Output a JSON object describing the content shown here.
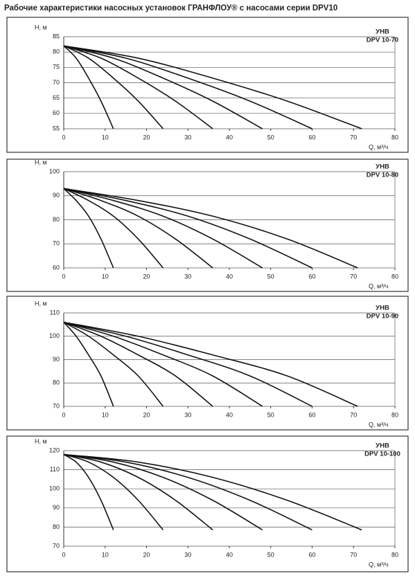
{
  "title": "Рабочие характеристики насосных установок  ГРАНФЛОУ® с насосами серии DPV10",
  "chart_data": [
    {
      "type": "line",
      "y_label": "H, м",
      "x_label": "Q, м³/ч",
      "label": "УНВ",
      "model": "DPV 10-70",
      "xlim": [
        0,
        80
      ],
      "xticks": [
        0,
        10,
        20,
        30,
        40,
        50,
        60,
        70,
        80
      ],
      "ylim": [
        55,
        85
      ],
      "yticks": [
        55,
        60,
        65,
        70,
        75,
        80,
        85
      ],
      "grid": true,
      "series": [
        {
          "color": "#111",
          "x": [
            0,
            3,
            6,
            9,
            12
          ],
          "values": [
            82,
            78,
            71.5,
            64,
            55
          ]
        },
        {
          "color": "#111",
          "x": [
            0,
            6,
            12,
            18,
            24
          ],
          "values": [
            82,
            78,
            71.5,
            64,
            55
          ]
        },
        {
          "color": "#111",
          "x": [
            0,
            9,
            18,
            27,
            36
          ],
          "values": [
            82,
            78,
            71.5,
            64,
            55
          ]
        },
        {
          "color": "#111",
          "x": [
            0,
            12,
            24,
            36,
            48
          ],
          "values": [
            82,
            78,
            71.5,
            64,
            55
          ]
        },
        {
          "color": "#111",
          "x": [
            0,
            15,
            30,
            45,
            60
          ],
          "values": [
            82,
            78,
            71.5,
            64,
            55
          ]
        },
        {
          "color": "#111",
          "x": [
            0,
            18,
            36,
            54,
            72
          ],
          "values": [
            82,
            78,
            71.5,
            64,
            55
          ]
        }
      ]
    },
    {
      "type": "line",
      "y_label": "H, м",
      "x_label": "Q, м³/ч",
      "label": "УНВ",
      "model": "DPV 10-80",
      "xlim": [
        0,
        80
      ],
      "xticks": [
        0,
        10,
        20,
        30,
        40,
        50,
        60,
        70,
        80
      ],
      "ylim": [
        60,
        100
      ],
      "yticks": [
        60,
        70,
        80,
        90,
        100
      ],
      "grid": true,
      "series": [
        {
          "color": "#111",
          "x": [
            0,
            3,
            6,
            9,
            12
          ],
          "values": [
            93,
            88,
            81.5,
            72,
            60
          ]
        },
        {
          "color": "#111",
          "x": [
            0,
            6,
            12,
            18,
            24
          ],
          "values": [
            93,
            88,
            81.5,
            72,
            60
          ]
        },
        {
          "color": "#111",
          "x": [
            0,
            9,
            18,
            27,
            36
          ],
          "values": [
            93,
            88,
            81.5,
            72,
            60
          ]
        },
        {
          "color": "#111",
          "x": [
            0,
            12,
            24,
            36,
            48
          ],
          "values": [
            93,
            88,
            81.5,
            72,
            60
          ]
        },
        {
          "color": "#111",
          "x": [
            0,
            15,
            30,
            45,
            60
          ],
          "values": [
            93,
            88,
            81.5,
            72,
            60
          ]
        },
        {
          "color": "#111",
          "x": [
            0,
            18,
            36,
            54,
            71
          ],
          "values": [
            93,
            88,
            81.5,
            72,
            60
          ]
        }
      ]
    },
    {
      "type": "line",
      "y_label": "H, м",
      "x_label": "Q, м³/ч",
      "label": "УНВ",
      "model": "DPV 10-90",
      "xlim": [
        0,
        80
      ],
      "xticks": [
        0,
        10,
        20,
        30,
        40,
        50,
        60,
        70,
        80
      ],
      "ylim": [
        70,
        110
      ],
      "yticks": [
        70,
        80,
        90,
        100,
        110
      ],
      "grid": true,
      "series": [
        {
          "color": "#111",
          "x": [
            0,
            3,
            6,
            9,
            12
          ],
          "values": [
            106,
            100,
            92,
            83,
            70
          ]
        },
        {
          "color": "#111",
          "x": [
            0,
            6,
            12,
            18,
            24
          ],
          "values": [
            106,
            100,
            92,
            83,
            70
          ]
        },
        {
          "color": "#111",
          "x": [
            0,
            9,
            18,
            27,
            36
          ],
          "values": [
            106,
            100,
            92,
            83,
            70
          ]
        },
        {
          "color": "#111",
          "x": [
            0,
            12,
            24,
            36,
            48
          ],
          "values": [
            106,
            100,
            92,
            83,
            70
          ]
        },
        {
          "color": "#111",
          "x": [
            0,
            15,
            30,
            45,
            60
          ],
          "values": [
            106,
            100,
            92,
            83,
            70
          ]
        },
        {
          "color": "#111",
          "x": [
            0,
            18,
            36,
            54,
            71
          ],
          "values": [
            106,
            100,
            92,
            83,
            70
          ]
        }
      ]
    },
    {
      "type": "line",
      "y_label": "H, м",
      "x_label": "Q, м³/ч",
      "label": "УНВ",
      "model": "DPV 10-100",
      "xlim": [
        0,
        80
      ],
      "xticks": [
        0,
        10,
        20,
        30,
        40,
        50,
        60,
        70,
        80
      ],
      "ylim": [
        70,
        120
      ],
      "yticks": [
        70,
        80,
        90,
        100,
        110,
        120
      ],
      "grid": true,
      "series": [
        {
          "color": "#111",
          "x": [
            0,
            3,
            6,
            9,
            12
          ],
          "values": [
            118,
            114,
            106,
            94,
            78.5
          ]
        },
        {
          "color": "#111",
          "x": [
            0,
            6,
            12,
            18,
            24
          ],
          "values": [
            118,
            114,
            106,
            94,
            78.5
          ]
        },
        {
          "color": "#111",
          "x": [
            0,
            9,
            18,
            27,
            36
          ],
          "values": [
            118,
            114,
            106,
            94,
            78.5
          ]
        },
        {
          "color": "#111",
          "x": [
            0,
            12,
            24,
            36,
            48
          ],
          "values": [
            118,
            114,
            106,
            94,
            78.5
          ]
        },
        {
          "color": "#111",
          "x": [
            0,
            15,
            30,
            45,
            60
          ],
          "values": [
            118,
            114,
            106,
            94,
            78.5
          ]
        },
        {
          "color": "#111",
          "x": [
            0,
            18,
            36,
            54,
            72
          ],
          "values": [
            118,
            114,
            106,
            94,
            78.5
          ]
        }
      ]
    }
  ]
}
